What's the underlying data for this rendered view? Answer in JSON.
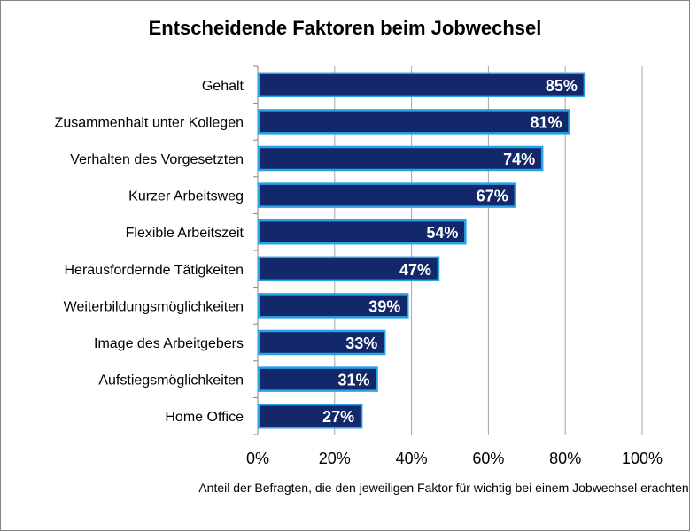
{
  "chart_data": {
    "type": "bar",
    "orientation": "horizontal",
    "title": "Entscheidende Faktoren beim Jobwechsel",
    "xlabel": "Anteil der Befragten, die den jeweiligen Faktor für wichtig bei einem Jobwechsel erachten",
    "ylabel": "",
    "categories": [
      "Gehalt",
      "Zusammenhalt unter Kollegen",
      "Verhalten des Vorgesetzten",
      "Kurzer Arbeitsweg",
      "Flexible Arbeitszeit",
      "Herausfordernde Tätigkeiten",
      "Weiterbildungsmöglichkeiten",
      "Image des Arbeitgebers",
      "Aufstiegsmöglichkeiten",
      "Home Office"
    ],
    "values": [
      85,
      81,
      74,
      67,
      54,
      47,
      39,
      33,
      31,
      27
    ],
    "data_labels": [
      "85%",
      "81%",
      "74%",
      "67%",
      "54%",
      "47%",
      "39%",
      "33%",
      "31%",
      "27%"
    ],
    "xlim": [
      0,
      100
    ],
    "xticks": [
      "0%",
      "20%",
      "40%",
      "60%",
      "80%",
      "100%"
    ],
    "grid": "vertical",
    "legend": "none",
    "colors": {
      "bar_fill": "#13286b",
      "bar_border": "#29a3e6",
      "grid": "#a6a6a6"
    }
  }
}
